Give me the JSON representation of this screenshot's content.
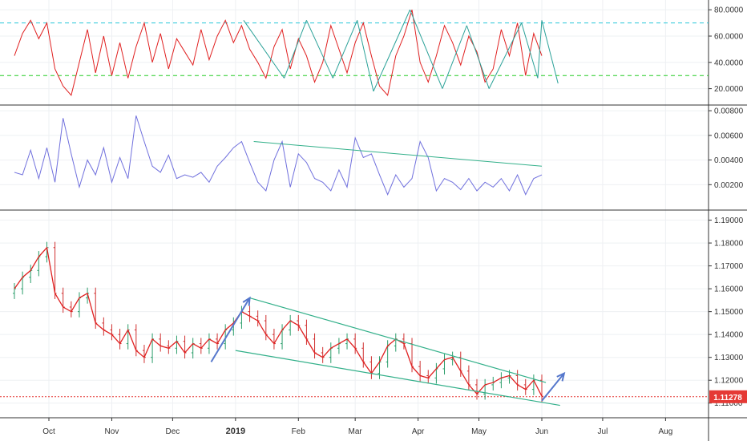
{
  "colors": {
    "rsi_line": "#e02020",
    "rsi_upper": "#26c6da",
    "rsi_lower": "#22cc22",
    "zigzag": "#2aa198",
    "vol_line": "#7070dd",
    "channel": "#33b08a",
    "arrow": "#5577cc",
    "candle_up": "#2a9d6a",
    "candle_down": "#d03030",
    "ma_line": "#e02020",
    "price_tag": "#e53935",
    "grid": "#eef0f3",
    "separator": "#333333"
  },
  "x_axis": {
    "labels": [
      {
        "text": "Oct",
        "date": "2018-10-01",
        "bold": false
      },
      {
        "text": "Nov",
        "date": "2018-11-01",
        "bold": false
      },
      {
        "text": "Dec",
        "date": "2018-12-01",
        "bold": false
      },
      {
        "text": "2019",
        "date": "2019-01-01",
        "bold": true
      },
      {
        "text": "Feb",
        "date": "2019-02-01",
        "bold": false
      },
      {
        "text": "Mar",
        "date": "2019-03-01",
        "bold": false
      },
      {
        "text": "Apr",
        "date": "2019-04-01",
        "bold": false
      },
      {
        "text": "May",
        "date": "2019-05-01",
        "bold": false
      },
      {
        "text": "Jun",
        "date": "2019-06-01",
        "bold": false
      },
      {
        "text": "Jul",
        "date": "2019-07-01",
        "bold": false
      },
      {
        "text": "Aug",
        "date": "2019-08-01",
        "bold": false
      }
    ]
  },
  "chart_data": [
    {
      "type": "line",
      "panel": "oscillator",
      "ylim": [
        10,
        85
      ],
      "yticks": [
        "80.0000",
        "60.0000",
        "40.0000",
        "20.0000"
      ],
      "ytick_values": [
        80,
        60,
        40,
        20
      ],
      "hlines": [
        70,
        30
      ],
      "series_dates": [
        "2018-09-14",
        "2018-09-18",
        "2018-09-22",
        "2018-09-26",
        "2018-09-30",
        "2018-10-04",
        "2018-10-08",
        "2018-10-12",
        "2018-10-16",
        "2018-10-20",
        "2018-10-24",
        "2018-10-28",
        "2018-11-01",
        "2018-11-05",
        "2018-11-09",
        "2018-11-13",
        "2018-11-17",
        "2018-11-21",
        "2018-11-25",
        "2018-11-29",
        "2018-12-03",
        "2018-12-07",
        "2018-12-11",
        "2018-12-15",
        "2018-12-19",
        "2018-12-23",
        "2018-12-27",
        "2018-12-31",
        "2019-01-04",
        "2019-01-08",
        "2019-01-12",
        "2019-01-16",
        "2019-01-20",
        "2019-01-24",
        "2019-01-28",
        "2019-02-01",
        "2019-02-05",
        "2019-02-09",
        "2019-02-13",
        "2019-02-17",
        "2019-02-21",
        "2019-02-25",
        "2019-03-01",
        "2019-03-05",
        "2019-03-09",
        "2019-03-13",
        "2019-03-17",
        "2019-03-21",
        "2019-03-25",
        "2019-03-29",
        "2019-04-02",
        "2019-04-06",
        "2019-04-10",
        "2019-04-14",
        "2019-04-18",
        "2019-04-22",
        "2019-04-26",
        "2019-04-30",
        "2019-05-04",
        "2019-05-08",
        "2019-05-12",
        "2019-05-16",
        "2019-05-20",
        "2019-05-24",
        "2019-05-28",
        "2019-06-01"
      ],
      "values": [
        45,
        62,
        72,
        58,
        70,
        35,
        22,
        15,
        40,
        65,
        32,
        60,
        30,
        55,
        28,
        52,
        70,
        40,
        62,
        35,
        58,
        48,
        38,
        65,
        42,
        60,
        72,
        55,
        68,
        50,
        40,
        28,
        52,
        65,
        35,
        58,
        45,
        25,
        40,
        68,
        50,
        32,
        55,
        70,
        45,
        22,
        15,
        45,
        60,
        80,
        40,
        25,
        45,
        68,
        55,
        38,
        60,
        48,
        25,
        35,
        65,
        45,
        70,
        30,
        62,
        45
      ],
      "zigzag": [
        {
          "date": "2019-01-05",
          "value": 72
        },
        {
          "date": "2019-01-25",
          "value": 28
        },
        {
          "date": "2019-02-05",
          "value": 72
        },
        {
          "date": "2019-02-18",
          "value": 28
        },
        {
          "date": "2019-03-02",
          "value": 72
        },
        {
          "date": "2019-03-10",
          "value": 18
        },
        {
          "date": "2019-03-28",
          "value": 80
        },
        {
          "date": "2019-04-13",
          "value": 20
        },
        {
          "date": "2019-04-25",
          "value": 68
        },
        {
          "date": "2019-05-06",
          "value": 20
        },
        {
          "date": "2019-05-22",
          "value": 70
        },
        {
          "date": "2019-05-30",
          "value": 28
        },
        {
          "date": "2019-06-01",
          "value": 72
        },
        {
          "date": "2019-06-09",
          "value": 24
        }
      ]
    },
    {
      "type": "line",
      "panel": "volatility",
      "ylim": [
        0.0002,
        0.0082
      ],
      "yticks": [
        "0.00800",
        "0.00600",
        "0.00400",
        "0.00200"
      ],
      "ytick_values": [
        0.008,
        0.006,
        0.004,
        0.002
      ],
      "series_dates": [
        "2018-09-14",
        "2018-09-18",
        "2018-09-22",
        "2018-09-26",
        "2018-09-30",
        "2018-10-04",
        "2018-10-08",
        "2018-10-12",
        "2018-10-16",
        "2018-10-20",
        "2018-10-24",
        "2018-10-28",
        "2018-11-01",
        "2018-11-05",
        "2018-11-09",
        "2018-11-13",
        "2018-11-17",
        "2018-11-21",
        "2018-11-25",
        "2018-11-29",
        "2018-12-03",
        "2018-12-07",
        "2018-12-11",
        "2018-12-15",
        "2018-12-19",
        "2018-12-23",
        "2018-12-27",
        "2018-12-31",
        "2019-01-04",
        "2019-01-08",
        "2019-01-12",
        "2019-01-16",
        "2019-01-20",
        "2019-01-24",
        "2019-01-28",
        "2019-02-01",
        "2019-02-05",
        "2019-02-09",
        "2019-02-13",
        "2019-02-17",
        "2019-02-21",
        "2019-02-25",
        "2019-03-01",
        "2019-03-05",
        "2019-03-09",
        "2019-03-13",
        "2019-03-17",
        "2019-03-21",
        "2019-03-25",
        "2019-03-29",
        "2019-04-02",
        "2019-04-06",
        "2019-04-10",
        "2019-04-14",
        "2019-04-18",
        "2019-04-22",
        "2019-04-26",
        "2019-04-30",
        "2019-05-04",
        "2019-05-08",
        "2019-05-12",
        "2019-05-16",
        "2019-05-20",
        "2019-05-24",
        "2019-05-28",
        "2019-06-01"
      ],
      "values": [
        0.003,
        0.0028,
        0.0048,
        0.0025,
        0.005,
        0.0022,
        0.0074,
        0.0045,
        0.0018,
        0.004,
        0.0028,
        0.005,
        0.0022,
        0.0042,
        0.0025,
        0.0076,
        0.0055,
        0.0035,
        0.003,
        0.0044,
        0.0025,
        0.0028,
        0.0026,
        0.003,
        0.0022,
        0.0035,
        0.0042,
        0.005,
        0.0055,
        0.0038,
        0.0022,
        0.0015,
        0.004,
        0.0055,
        0.0018,
        0.0045,
        0.0038,
        0.0025,
        0.0022,
        0.0015,
        0.0032,
        0.0018,
        0.0058,
        0.0042,
        0.0045,
        0.0028,
        0.0012,
        0.0028,
        0.0018,
        0.0025,
        0.0055,
        0.0042,
        0.0015,
        0.0025,
        0.0022,
        0.0016,
        0.0025,
        0.0015,
        0.0022,
        0.0018,
        0.0025,
        0.0015,
        0.0028,
        0.0012,
        0.0025,
        0.0028
      ],
      "trendline": [
        {
          "date": "2019-01-10",
          "value": 0.0055
        },
        {
          "date": "2019-06-01",
          "value": 0.0035
        }
      ]
    },
    {
      "type": "candlestick",
      "panel": "price",
      "ylim": [
        1.105,
        1.193
      ],
      "yticks": [
        "1.19000",
        "1.18000",
        "1.17000",
        "1.16000",
        "1.15000",
        "1.14000",
        "1.13000",
        "1.12000",
        "1.11000"
      ],
      "ytick_values": [
        1.19,
        1.18,
        1.17,
        1.16,
        1.15,
        1.14,
        1.13,
        1.12,
        1.11
      ],
      "last_price": {
        "value": 1.11278,
        "label": "1.11278"
      },
      "close_dates": [
        "2018-09-14",
        "2018-09-18",
        "2018-09-22",
        "2018-09-26",
        "2018-09-30",
        "2018-10-04",
        "2018-10-08",
        "2018-10-12",
        "2018-10-16",
        "2018-10-20",
        "2018-10-24",
        "2018-10-28",
        "2018-11-01",
        "2018-11-05",
        "2018-11-09",
        "2018-11-13",
        "2018-11-17",
        "2018-11-21",
        "2018-11-25",
        "2018-11-29",
        "2018-12-03",
        "2018-12-07",
        "2018-12-11",
        "2018-12-15",
        "2018-12-19",
        "2018-12-23",
        "2018-12-27",
        "2018-12-31",
        "2019-01-04",
        "2019-01-08",
        "2019-01-12",
        "2019-01-16",
        "2019-01-20",
        "2019-01-24",
        "2019-01-28",
        "2019-02-01",
        "2019-02-05",
        "2019-02-09",
        "2019-02-13",
        "2019-02-17",
        "2019-02-21",
        "2019-02-25",
        "2019-03-01",
        "2019-03-05",
        "2019-03-09",
        "2019-03-13",
        "2019-03-17",
        "2019-03-21",
        "2019-03-25",
        "2019-03-29",
        "2019-04-02",
        "2019-04-06",
        "2019-04-10",
        "2019-04-14",
        "2019-04-18",
        "2019-04-22",
        "2019-04-26",
        "2019-04-30",
        "2019-05-04",
        "2019-05-08",
        "2019-05-12",
        "2019-05-16",
        "2019-05-20",
        "2019-05-24",
        "2019-05-28",
        "2019-06-01"
      ],
      "close": [
        1.16,
        1.165,
        1.168,
        1.174,
        1.178,
        1.158,
        1.152,
        1.15,
        1.156,
        1.158,
        1.145,
        1.142,
        1.14,
        1.136,
        1.142,
        1.133,
        1.13,
        1.138,
        1.135,
        1.134,
        1.137,
        1.132,
        1.136,
        1.134,
        1.138,
        1.136,
        1.142,
        1.145,
        1.15,
        1.148,
        1.146,
        1.14,
        1.136,
        1.142,
        1.146,
        1.144,
        1.138,
        1.132,
        1.13,
        1.134,
        1.136,
        1.138,
        1.134,
        1.128,
        1.123,
        1.128,
        1.135,
        1.138,
        1.136,
        1.126,
        1.122,
        1.121,
        1.125,
        1.129,
        1.13,
        1.124,
        1.118,
        1.114,
        1.118,
        1.119,
        1.121,
        1.122,
        1.118,
        1.116,
        1.12,
        1.113
      ],
      "channel_upper": [
        {
          "date": "2019-01-08",
          "value": 1.156
        },
        {
          "date": "2019-06-03",
          "value": 1.119
        }
      ],
      "channel_lower": [
        {
          "date": "2019-01-01",
          "value": 1.133
        },
        {
          "date": "2019-06-10",
          "value": 1.109
        }
      ],
      "arrow_1": [
        {
          "date": "2018-12-20",
          "value": 1.128
        },
        {
          "date": "2019-01-08",
          "value": 1.156
        }
      ],
      "arrow_2": [
        {
          "date": "2019-06-01",
          "value": 1.111
        },
        {
          "date": "2019-06-12",
          "value": 1.123
        }
      ]
    }
  ]
}
